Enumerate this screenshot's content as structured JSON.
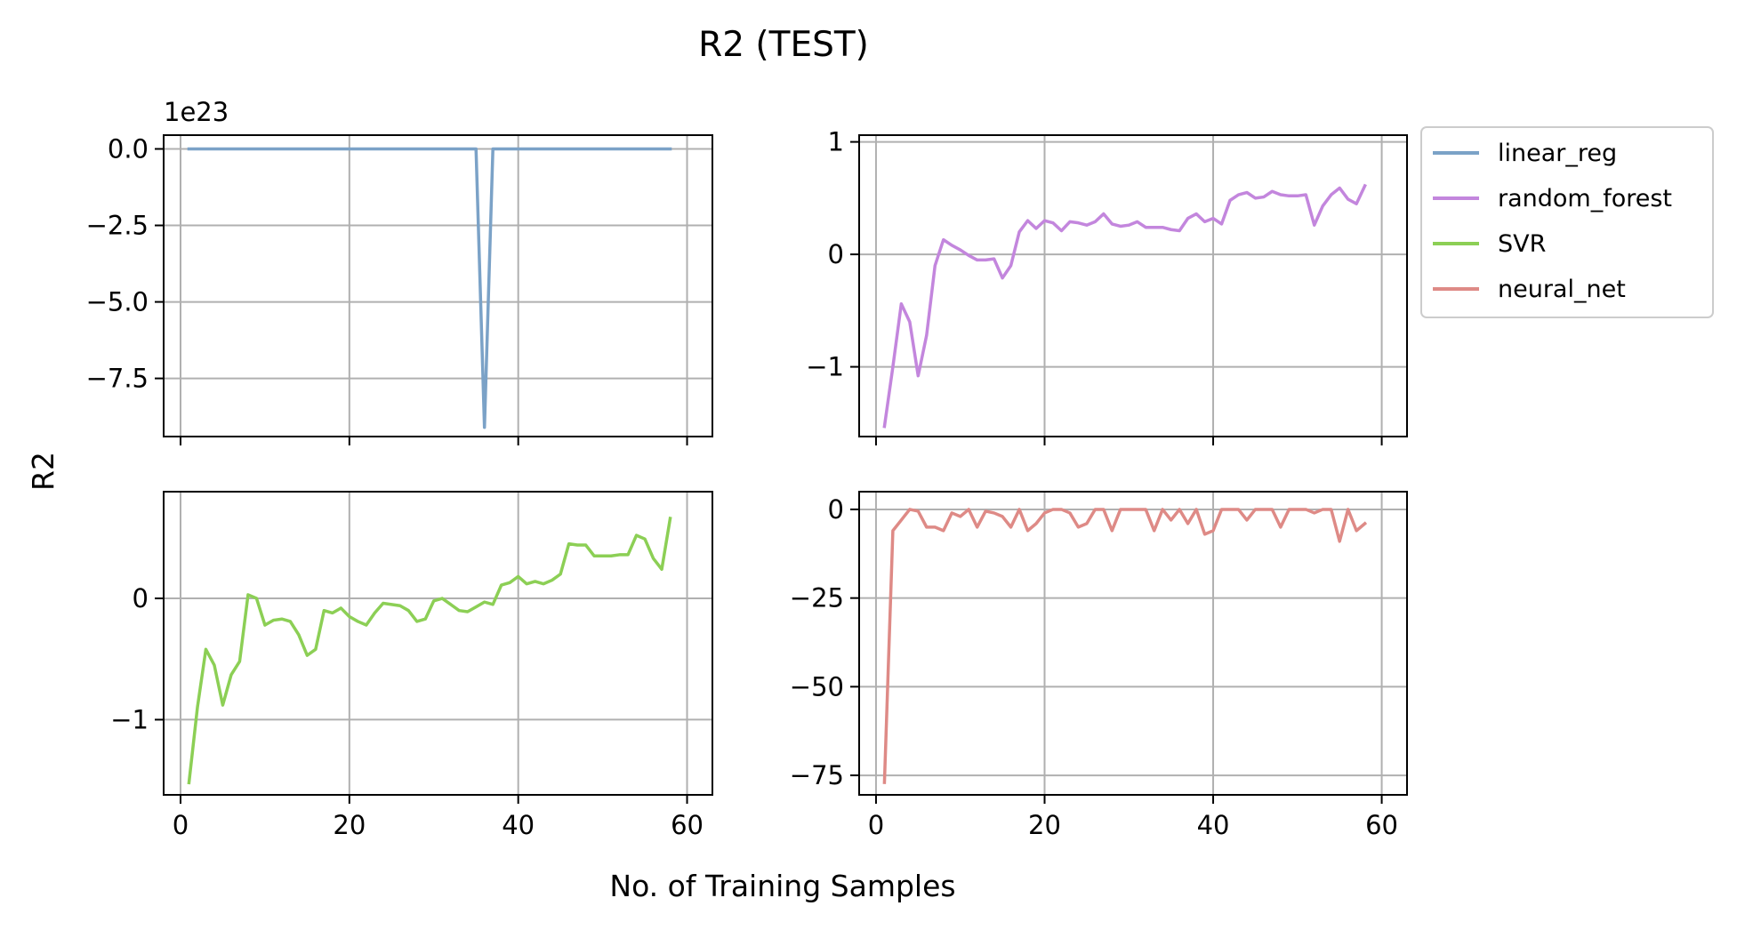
{
  "figure": {
    "title": "R2 (TEST)",
    "xlabel": "No. of Training Samples",
    "ylabel": "R2"
  },
  "legend": {
    "placement": "upper-right, outside axes",
    "entries": [
      {
        "name": "linear_reg",
        "color": "#7ba2c7"
      },
      {
        "name": "random_forest",
        "color": "#c386dd"
      },
      {
        "name": "SVR",
        "color": "#8ccf55"
      },
      {
        "name": "neural_net",
        "color": "#de8a86"
      }
    ]
  },
  "chart_data": [
    {
      "type": "line",
      "panel": "top-left",
      "series": [
        {
          "name": "linear_reg",
          "color": "#7ba2c7",
          "x": [
            1,
            2,
            3,
            4,
            5,
            6,
            7,
            8,
            9,
            10,
            11,
            12,
            13,
            14,
            15,
            16,
            17,
            18,
            19,
            20,
            21,
            22,
            23,
            24,
            25,
            26,
            27,
            28,
            29,
            30,
            31,
            32,
            33,
            34,
            35,
            36,
            37,
            38,
            39,
            40,
            41,
            42,
            43,
            44,
            45,
            46,
            47,
            48,
            49,
            50,
            51,
            52,
            53,
            54,
            55,
            56,
            57,
            58
          ],
          "y": [
            0,
            0,
            0,
            0,
            0,
            0,
            0,
            0,
            0,
            0,
            0,
            0,
            0,
            0,
            0,
            0,
            0,
            0,
            0,
            0,
            0,
            0,
            0,
            0,
            0,
            0,
            0,
            0,
            0,
            0,
            0,
            0,
            0,
            0,
            0,
            -9.1,
            0,
            0,
            0,
            0,
            0,
            0,
            0,
            0,
            0,
            0,
            0,
            0,
            0,
            0,
            0,
            0,
            0,
            0,
            0,
            0,
            0,
            0
          ]
        }
      ],
      "xlim": [
        -2,
        63
      ],
      "ylim": [
        -9.4,
        0.45
      ],
      "xticks": [
        0,
        20,
        40,
        60
      ],
      "xticklabels": [
        "",
        "",
        "",
        ""
      ],
      "yticks": [
        0,
        -2.5,
        -5,
        -7.5
      ],
      "yticklabels": [
        "0.0",
        "−2.5",
        "−5.0",
        "−7.5"
      ],
      "offset_text": "1e23",
      "grid": true
    },
    {
      "type": "line",
      "panel": "top-right",
      "series": [
        {
          "name": "random_forest",
          "color": "#c386dd",
          "x": [
            1,
            2,
            3,
            4,
            5,
            6,
            7,
            8,
            9,
            10,
            11,
            12,
            13,
            14,
            15,
            16,
            17,
            18,
            19,
            20,
            21,
            22,
            23,
            24,
            25,
            26,
            27,
            28,
            29,
            30,
            31,
            32,
            33,
            34,
            35,
            36,
            37,
            38,
            39,
            40,
            41,
            42,
            43,
            44,
            45,
            46,
            47,
            48,
            49,
            50,
            51,
            52,
            53,
            54,
            55,
            56,
            57,
            58
          ],
          "y": [
            -1.53,
            -1.0,
            -0.44,
            -0.6,
            -1.08,
            -0.72,
            -0.1,
            0.13,
            0.08,
            0.04,
            -0.01,
            -0.05,
            -0.05,
            -0.04,
            -0.21,
            -0.1,
            0.2,
            0.3,
            0.23,
            0.3,
            0.28,
            0.21,
            0.29,
            0.28,
            0.26,
            0.29,
            0.36,
            0.27,
            0.25,
            0.26,
            0.29,
            0.24,
            0.24,
            0.24,
            0.22,
            0.21,
            0.32,
            0.36,
            0.29,
            0.32,
            0.27,
            0.48,
            0.53,
            0.55,
            0.5,
            0.51,
            0.56,
            0.53,
            0.52,
            0.52,
            0.53,
            0.26,
            0.43,
            0.53,
            0.59,
            0.49,
            0.45,
            0.61
          ]
        }
      ],
      "xlim": [
        -2,
        63
      ],
      "ylim": [
        -1.62,
        1.06
      ],
      "xticks": [
        0,
        20,
        40,
        60
      ],
      "xticklabels": [
        "",
        "",
        "",
        ""
      ],
      "yticks": [
        1,
        0,
        -1
      ],
      "yticklabels": [
        "1",
        "0",
        "−1"
      ],
      "grid": true
    },
    {
      "type": "line",
      "panel": "bottom-left",
      "series": [
        {
          "name": "SVR",
          "color": "#8ccf55",
          "x": [
            1,
            2,
            3,
            4,
            5,
            6,
            7,
            8,
            9,
            10,
            11,
            12,
            13,
            14,
            15,
            16,
            17,
            18,
            19,
            20,
            21,
            22,
            23,
            24,
            25,
            26,
            27,
            28,
            29,
            30,
            31,
            32,
            33,
            34,
            35,
            36,
            37,
            38,
            39,
            40,
            41,
            42,
            43,
            44,
            45,
            46,
            47,
            48,
            49,
            50,
            51,
            52,
            53,
            54,
            55,
            56,
            57,
            58
          ],
          "y": [
            -1.52,
            -0.9,
            -0.42,
            -0.55,
            -0.88,
            -0.63,
            -0.52,
            0.03,
            0.0,
            -0.22,
            -0.18,
            -0.17,
            -0.19,
            -0.3,
            -0.47,
            -0.42,
            -0.1,
            -0.12,
            -0.08,
            -0.15,
            -0.19,
            -0.22,
            -0.12,
            -0.04,
            -0.05,
            -0.06,
            -0.1,
            -0.19,
            -0.17,
            -0.02,
            0.0,
            -0.05,
            -0.1,
            -0.11,
            -0.07,
            -0.03,
            -0.05,
            0.11,
            0.13,
            0.18,
            0.12,
            0.14,
            0.12,
            0.15,
            0.2,
            0.45,
            0.44,
            0.44,
            0.35,
            0.35,
            0.35,
            0.36,
            0.36,
            0.52,
            0.49,
            0.33,
            0.24,
            0.66
          ]
        }
      ],
      "xlim": [
        -2,
        63
      ],
      "ylim": [
        -1.62,
        0.88
      ],
      "xticks": [
        0,
        20,
        40,
        60
      ],
      "xticklabels": [
        "0",
        "20",
        "40",
        "60"
      ],
      "yticks": [
        0,
        -1
      ],
      "yticklabels": [
        "0",
        "−1"
      ],
      "grid": true
    },
    {
      "type": "line",
      "panel": "bottom-right",
      "series": [
        {
          "name": "neural_net",
          "color": "#de8a86",
          "x": [
            1,
            2,
            3,
            4,
            5,
            6,
            7,
            8,
            9,
            10,
            11,
            12,
            13,
            14,
            15,
            16,
            17,
            18,
            19,
            20,
            21,
            22,
            23,
            24,
            25,
            26,
            27,
            28,
            29,
            30,
            31,
            32,
            33,
            34,
            35,
            36,
            37,
            38,
            39,
            40,
            41,
            42,
            43,
            44,
            45,
            46,
            47,
            48,
            49,
            50,
            51,
            52,
            53,
            54,
            55,
            56,
            57,
            58
          ],
          "y": [
            -77,
            -6,
            -3,
            0,
            -0.5,
            -5,
            -5,
            -6,
            -1,
            -2,
            0,
            -5,
            -0.5,
            -1,
            -2,
            -5,
            0,
            -6,
            -4,
            -1,
            0,
            0,
            -1,
            -5,
            -4,
            0,
            0,
            -6,
            0,
            0,
            0,
            0,
            -6,
            0,
            -3,
            0,
            -4,
            0,
            -7,
            -6,
            0,
            0,
            0,
            -3,
            0,
            0,
            0,
            -5,
            0,
            0,
            0,
            -1,
            0,
            0,
            -9,
            0,
            -6,
            -4
          ]
        }
      ],
      "xlim": [
        -2,
        63
      ],
      "ylim": [
        -80.5,
        5
      ],
      "xticks": [
        0,
        20,
        40,
        60
      ],
      "xticklabels": [
        "0",
        "20",
        "40",
        "60"
      ],
      "yticks": [
        0,
        -25,
        -50,
        -75
      ],
      "yticklabels": [
        "0",
        "−25",
        "−50",
        "−75"
      ],
      "grid": true
    }
  ]
}
